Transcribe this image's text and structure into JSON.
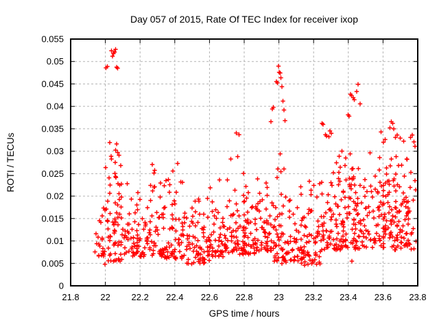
{
  "chart_data": {
    "type": "scatter",
    "title": "Day 057 of 2015, Rate Of TEC Index for receiver ixop",
    "xlabel": "GPS time / hours",
    "ylabel": "ROTI / TECUs",
    "xlim": [
      21.8,
      23.8
    ],
    "ylim": [
      0,
      0.055
    ],
    "grid": true,
    "legend": "none",
    "marker": "plus",
    "marker_color": "#ff0000",
    "grid_color": "#b3b3b3",
    "border_color": "#000000",
    "xticks": [
      {
        "v": 21.8,
        "label": "21.8"
      },
      {
        "v": 22.0,
        "label": "22"
      },
      {
        "v": 22.2,
        "label": "22.2"
      },
      {
        "v": 22.4,
        "label": "22.4"
      },
      {
        "v": 22.6,
        "label": "22.6"
      },
      {
        "v": 22.8,
        "label": "22.8"
      },
      {
        "v": 23.0,
        "label": "23"
      },
      {
        "v": 23.2,
        "label": "23.2"
      },
      {
        "v": 23.4,
        "label": "23.4"
      },
      {
        "v": 23.6,
        "label": "23.6"
      },
      {
        "v": 23.8,
        "label": "23.8"
      }
    ],
    "yticks": [
      {
        "v": 0.0,
        "label": "0"
      },
      {
        "v": 0.005,
        "label": "0.005"
      },
      {
        "v": 0.01,
        "label": "0.01"
      },
      {
        "v": 0.015,
        "label": "0.015"
      },
      {
        "v": 0.02,
        "label": "0.02"
      },
      {
        "v": 0.025,
        "label": "0.025"
      },
      {
        "v": 0.03,
        "label": "0.03"
      },
      {
        "v": 0.035,
        "label": "0.035"
      },
      {
        "v": 0.04,
        "label": "0.04"
      },
      {
        "v": 0.045,
        "label": "0.045"
      },
      {
        "v": 0.05,
        "label": "0.05"
      },
      {
        "v": 0.055,
        "label": "0.055"
      }
    ],
    "points_outliers": [
      [
        22.004,
        0.0486
      ],
      [
        22.012,
        0.0489
      ],
      [
        22.035,
        0.0524
      ],
      [
        22.042,
        0.0512
      ],
      [
        22.047,
        0.0518
      ],
      [
        22.053,
        0.0521
      ],
      [
        22.058,
        0.0527
      ],
      [
        22.064,
        0.0487
      ],
      [
        22.071,
        0.0485
      ],
      [
        22.025,
        0.0319
      ],
      [
        22.065,
        0.0316
      ],
      [
        22.07,
        0.0297
      ],
      [
        22.078,
        0.0291
      ],
      [
        22.035,
        0.0283
      ],
      [
        22.755,
        0.0341
      ],
      [
        22.77,
        0.0337
      ],
      [
        22.955,
        0.0366
      ],
      [
        22.962,
        0.0394
      ],
      [
        22.968,
        0.0398
      ],
      [
        22.985,
        0.0455
      ],
      [
        22.992,
        0.0452
      ],
      [
        22.998,
        0.049
      ],
      [
        23.002,
        0.0476
      ],
      [
        23.008,
        0.0474
      ],
      [
        23.012,
        0.0464
      ],
      [
        23.018,
        0.0444
      ],
      [
        23.024,
        0.0412
      ],
      [
        23.03,
        0.0392
      ],
      [
        23.036,
        0.0368
      ],
      [
        23.248,
        0.0362
      ],
      [
        23.255,
        0.036
      ],
      [
        23.268,
        0.0337
      ],
      [
        23.275,
        0.0334
      ],
      [
        23.288,
        0.0332
      ],
      [
        23.295,
        0.0345
      ],
      [
        23.302,
        0.034
      ],
      [
        23.398,
        0.0381
      ],
      [
        23.405,
        0.0378
      ],
      [
        23.412,
        0.0427
      ],
      [
        23.418,
        0.0424
      ],
      [
        23.428,
        0.0419
      ],
      [
        23.435,
        0.0415
      ],
      [
        23.449,
        0.0433
      ],
      [
        23.457,
        0.0449
      ],
      [
        23.468,
        0.0406
      ],
      [
        23.588,
        0.0343
      ],
      [
        23.602,
        0.032
      ],
      [
        23.612,
        0.0326
      ],
      [
        23.64,
        0.0352
      ],
      [
        23.648,
        0.0366
      ],
      [
        23.655,
        0.0362
      ],
      [
        23.662,
        0.035
      ],
      [
        23.672,
        0.0331
      ],
      [
        23.682,
        0.0336
      ],
      [
        23.7,
        0.0329
      ],
      [
        23.718,
        0.0322
      ],
      [
        23.758,
        0.0331
      ],
      [
        23.768,
        0.0336
      ],
      [
        23.778,
        0.0321
      ],
      [
        23.785,
        0.0311
      ],
      [
        21.998,
        0.0048
      ],
      [
        22.478,
        0.005
      ],
      [
        22.497,
        0.0049
      ],
      [
        22.51,
        0.0052
      ],
      [
        23.018,
        0.005
      ],
      [
        23.042,
        0.0053
      ],
      [
        23.148,
        0.0046
      ],
      [
        23.168,
        0.0048
      ],
      [
        23.19,
        0.005
      ],
      [
        23.42,
        0.0055
      ]
    ],
    "band_segments": [
      [
        21.94,
        22.0,
        22,
        0.0065,
        0.0245,
        1
      ],
      [
        22.0,
        22.1,
        65,
        0.0055,
        0.032,
        1
      ],
      [
        22.1,
        22.22,
        55,
        0.0065,
        0.0255,
        1
      ],
      [
        22.22,
        22.34,
        62,
        0.0065,
        0.0285,
        1
      ],
      [
        22.34,
        22.46,
        65,
        0.006,
        0.0285,
        1
      ],
      [
        22.46,
        22.6,
        70,
        0.005,
        0.024,
        1
      ],
      [
        22.6,
        22.72,
        60,
        0.0065,
        0.0275,
        1
      ],
      [
        22.72,
        22.86,
        85,
        0.007,
        0.033,
        1
      ],
      [
        22.86,
        22.97,
        62,
        0.0075,
        0.031,
        1
      ],
      [
        22.97,
        23.1,
        72,
        0.0055,
        0.03,
        1
      ],
      [
        23.1,
        23.24,
        75,
        0.0048,
        0.03,
        1
      ],
      [
        23.24,
        23.38,
        85,
        0.008,
        0.032,
        0.85
      ],
      [
        23.38,
        23.52,
        90,
        0.008,
        0.033,
        0.8
      ],
      [
        23.52,
        23.66,
        85,
        0.0085,
        0.034,
        0.8
      ],
      [
        23.66,
        23.79,
        80,
        0.008,
        0.032,
        0.8
      ]
    ],
    "seed": 7
  }
}
